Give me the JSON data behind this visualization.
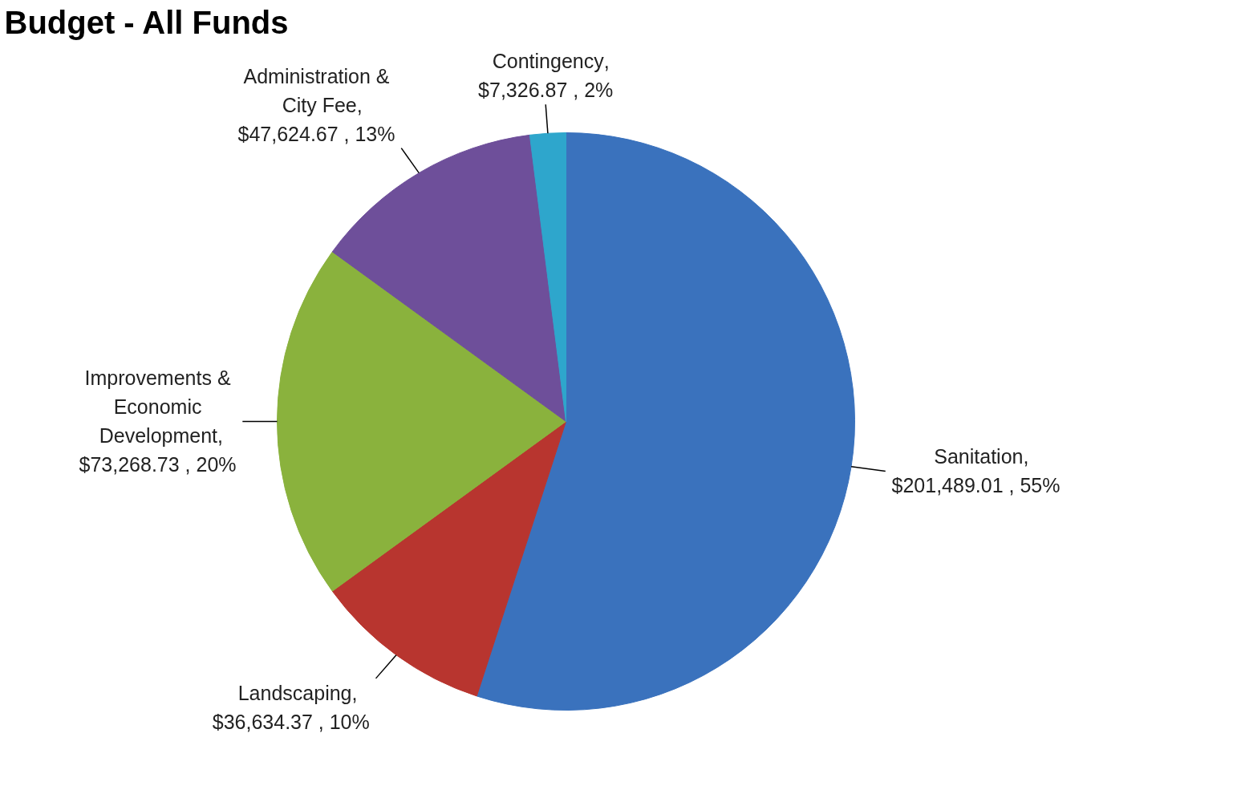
{
  "chart_data": {
    "type": "pie",
    "title": "Budget - All Funds",
    "categories": [
      "Sanitation",
      "Landscaping",
      "Improvements & Economic Development",
      "Administration & City Fee",
      "Contingency"
    ],
    "values": [
      201489.01,
      36634.37,
      73268.73,
      47624.67,
      7326.87
    ],
    "colors": [
      "#3a72bd",
      "#b8352f",
      "#8ab23d",
      "#6e4f9a",
      "#2ea6cc"
    ],
    "value_labels": [
      ", $201,489.01 , 55%",
      ", $36,634.37 , 10%",
      ", $73,268.73 , 20%",
      ", $47,624.67 , 13%",
      ", $7,326.87 , 2%"
    ]
  }
}
